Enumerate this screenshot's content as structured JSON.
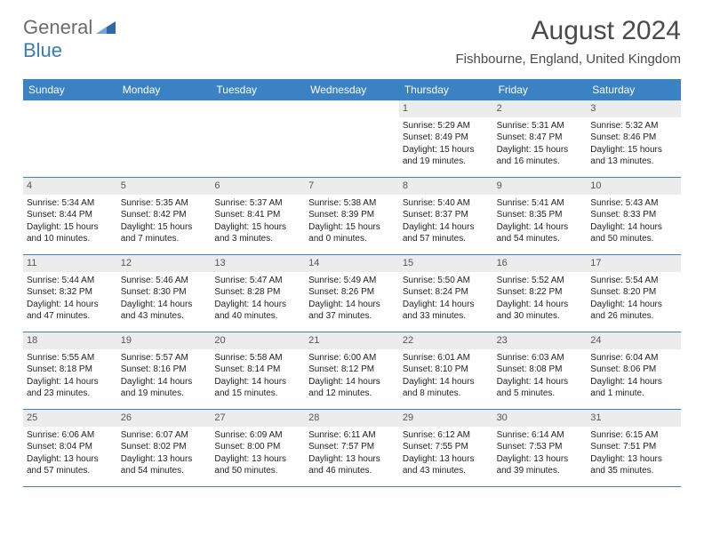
{
  "brand": {
    "general": "General",
    "blue": "Blue"
  },
  "header": {
    "title": "August 2024",
    "subtitle": "Fishbourne, England, United Kingdom"
  },
  "colors": {
    "header_bar": "#3a82c4",
    "week_border": "#3a82c4",
    "daynum_bg": "#ececec",
    "text": "#222222",
    "brand_gray": "#6b6b6b",
    "brand_blue": "#3a7ab8"
  },
  "weekdays": [
    "Sunday",
    "Monday",
    "Tuesday",
    "Wednesday",
    "Thursday",
    "Friday",
    "Saturday"
  ],
  "weeks": [
    [
      null,
      null,
      null,
      null,
      {
        "n": "1",
        "sr": "Sunrise: 5:29 AM",
        "ss": "Sunset: 8:49 PM",
        "dl": "Daylight: 15 hours and 19 minutes."
      },
      {
        "n": "2",
        "sr": "Sunrise: 5:31 AM",
        "ss": "Sunset: 8:47 PM",
        "dl": "Daylight: 15 hours and 16 minutes."
      },
      {
        "n": "3",
        "sr": "Sunrise: 5:32 AM",
        "ss": "Sunset: 8:46 PM",
        "dl": "Daylight: 15 hours and 13 minutes."
      }
    ],
    [
      {
        "n": "4",
        "sr": "Sunrise: 5:34 AM",
        "ss": "Sunset: 8:44 PM",
        "dl": "Daylight: 15 hours and 10 minutes."
      },
      {
        "n": "5",
        "sr": "Sunrise: 5:35 AM",
        "ss": "Sunset: 8:42 PM",
        "dl": "Daylight: 15 hours and 7 minutes."
      },
      {
        "n": "6",
        "sr": "Sunrise: 5:37 AM",
        "ss": "Sunset: 8:41 PM",
        "dl": "Daylight: 15 hours and 3 minutes."
      },
      {
        "n": "7",
        "sr": "Sunrise: 5:38 AM",
        "ss": "Sunset: 8:39 PM",
        "dl": "Daylight: 15 hours and 0 minutes."
      },
      {
        "n": "8",
        "sr": "Sunrise: 5:40 AM",
        "ss": "Sunset: 8:37 PM",
        "dl": "Daylight: 14 hours and 57 minutes."
      },
      {
        "n": "9",
        "sr": "Sunrise: 5:41 AM",
        "ss": "Sunset: 8:35 PM",
        "dl": "Daylight: 14 hours and 54 minutes."
      },
      {
        "n": "10",
        "sr": "Sunrise: 5:43 AM",
        "ss": "Sunset: 8:33 PM",
        "dl": "Daylight: 14 hours and 50 minutes."
      }
    ],
    [
      {
        "n": "11",
        "sr": "Sunrise: 5:44 AM",
        "ss": "Sunset: 8:32 PM",
        "dl": "Daylight: 14 hours and 47 minutes."
      },
      {
        "n": "12",
        "sr": "Sunrise: 5:46 AM",
        "ss": "Sunset: 8:30 PM",
        "dl": "Daylight: 14 hours and 43 minutes."
      },
      {
        "n": "13",
        "sr": "Sunrise: 5:47 AM",
        "ss": "Sunset: 8:28 PM",
        "dl": "Daylight: 14 hours and 40 minutes."
      },
      {
        "n": "14",
        "sr": "Sunrise: 5:49 AM",
        "ss": "Sunset: 8:26 PM",
        "dl": "Daylight: 14 hours and 37 minutes."
      },
      {
        "n": "15",
        "sr": "Sunrise: 5:50 AM",
        "ss": "Sunset: 8:24 PM",
        "dl": "Daylight: 14 hours and 33 minutes."
      },
      {
        "n": "16",
        "sr": "Sunrise: 5:52 AM",
        "ss": "Sunset: 8:22 PM",
        "dl": "Daylight: 14 hours and 30 minutes."
      },
      {
        "n": "17",
        "sr": "Sunrise: 5:54 AM",
        "ss": "Sunset: 8:20 PM",
        "dl": "Daylight: 14 hours and 26 minutes."
      }
    ],
    [
      {
        "n": "18",
        "sr": "Sunrise: 5:55 AM",
        "ss": "Sunset: 8:18 PM",
        "dl": "Daylight: 14 hours and 23 minutes."
      },
      {
        "n": "19",
        "sr": "Sunrise: 5:57 AM",
        "ss": "Sunset: 8:16 PM",
        "dl": "Daylight: 14 hours and 19 minutes."
      },
      {
        "n": "20",
        "sr": "Sunrise: 5:58 AM",
        "ss": "Sunset: 8:14 PM",
        "dl": "Daylight: 14 hours and 15 minutes."
      },
      {
        "n": "21",
        "sr": "Sunrise: 6:00 AM",
        "ss": "Sunset: 8:12 PM",
        "dl": "Daylight: 14 hours and 12 minutes."
      },
      {
        "n": "22",
        "sr": "Sunrise: 6:01 AM",
        "ss": "Sunset: 8:10 PM",
        "dl": "Daylight: 14 hours and 8 minutes."
      },
      {
        "n": "23",
        "sr": "Sunrise: 6:03 AM",
        "ss": "Sunset: 8:08 PM",
        "dl": "Daylight: 14 hours and 5 minutes."
      },
      {
        "n": "24",
        "sr": "Sunrise: 6:04 AM",
        "ss": "Sunset: 8:06 PM",
        "dl": "Daylight: 14 hours and 1 minute."
      }
    ],
    [
      {
        "n": "25",
        "sr": "Sunrise: 6:06 AM",
        "ss": "Sunset: 8:04 PM",
        "dl": "Daylight: 13 hours and 57 minutes."
      },
      {
        "n": "26",
        "sr": "Sunrise: 6:07 AM",
        "ss": "Sunset: 8:02 PM",
        "dl": "Daylight: 13 hours and 54 minutes."
      },
      {
        "n": "27",
        "sr": "Sunrise: 6:09 AM",
        "ss": "Sunset: 8:00 PM",
        "dl": "Daylight: 13 hours and 50 minutes."
      },
      {
        "n": "28",
        "sr": "Sunrise: 6:11 AM",
        "ss": "Sunset: 7:57 PM",
        "dl": "Daylight: 13 hours and 46 minutes."
      },
      {
        "n": "29",
        "sr": "Sunrise: 6:12 AM",
        "ss": "Sunset: 7:55 PM",
        "dl": "Daylight: 13 hours and 43 minutes."
      },
      {
        "n": "30",
        "sr": "Sunrise: 6:14 AM",
        "ss": "Sunset: 7:53 PM",
        "dl": "Daylight: 13 hours and 39 minutes."
      },
      {
        "n": "31",
        "sr": "Sunrise: 6:15 AM",
        "ss": "Sunset: 7:51 PM",
        "dl": "Daylight: 13 hours and 35 minutes."
      }
    ]
  ]
}
